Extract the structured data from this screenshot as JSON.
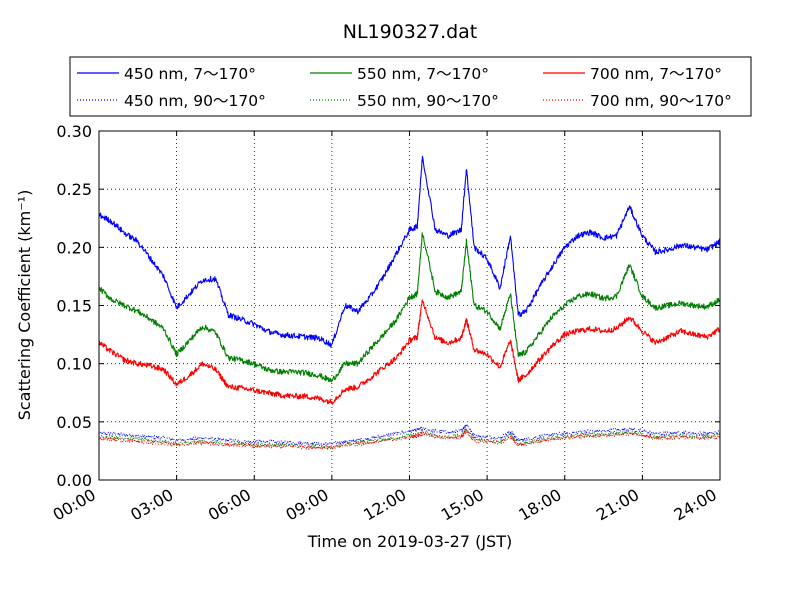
{
  "chart_data": {
    "type": "line",
    "title": "NL190327.dat",
    "xlabel": "Time on 2019-03-27 (JST)",
    "ylabel": "Scattering Coefficient (km⁻¹)",
    "xlim": [
      "00:00",
      "24:00"
    ],
    "ylim": [
      0,
      0.3
    ],
    "x_ticks": [
      "00:00",
      "03:00",
      "06:00",
      "09:00",
      "12:00",
      "15:00",
      "18:00",
      "21:00",
      "24:00"
    ],
    "y_ticks": [
      "0.00",
      "0.05",
      "0.10",
      "0.15",
      "0.20",
      "0.25",
      "0.30"
    ],
    "grid": true,
    "legend_position": "top",
    "x_hours": [
      0,
      0.5,
      1,
      1.5,
      2,
      2.5,
      3,
      3.5,
      4,
      4.5,
      5,
      5.5,
      6,
      6.5,
      7,
      7.5,
      8,
      8.5,
      9,
      9.5,
      10,
      10.5,
      11,
      11.5,
      12,
      12.3,
      12.5,
      13,
      13.5,
      14,
      14.2,
      14.5,
      15,
      15.5,
      15.9,
      16.2,
      16.5,
      17,
      17.5,
      18,
      18.5,
      19,
      19.5,
      20,
      20.5,
      21,
      21.5,
      22,
      22.5,
      23,
      23.5,
      24
    ],
    "series": [
      {
        "name": "450 nm, 7～170°",
        "color": "#0000ff",
        "style": "solid",
        "values": [
          0.228,
          0.222,
          0.212,
          0.205,
          0.19,
          0.175,
          0.148,
          0.16,
          0.172,
          0.173,
          0.142,
          0.138,
          0.134,
          0.128,
          0.125,
          0.124,
          0.123,
          0.122,
          0.116,
          0.15,
          0.145,
          0.158,
          0.175,
          0.195,
          0.215,
          0.218,
          0.278,
          0.215,
          0.21,
          0.215,
          0.268,
          0.2,
          0.19,
          0.165,
          0.21,
          0.142,
          0.145,
          0.165,
          0.183,
          0.2,
          0.21,
          0.213,
          0.208,
          0.21,
          0.235,
          0.21,
          0.196,
          0.198,
          0.202,
          0.2,
          0.198,
          0.205
        ]
      },
      {
        "name": "550 nm, 7～170°",
        "color": "#008000",
        "style": "solid",
        "values": [
          0.165,
          0.155,
          0.15,
          0.145,
          0.138,
          0.13,
          0.108,
          0.12,
          0.132,
          0.127,
          0.105,
          0.103,
          0.1,
          0.095,
          0.093,
          0.093,
          0.092,
          0.09,
          0.085,
          0.1,
          0.1,
          0.113,
          0.125,
          0.138,
          0.157,
          0.16,
          0.213,
          0.162,
          0.157,
          0.162,
          0.205,
          0.15,
          0.145,
          0.13,
          0.16,
          0.107,
          0.11,
          0.125,
          0.14,
          0.15,
          0.158,
          0.16,
          0.156,
          0.158,
          0.185,
          0.158,
          0.148,
          0.15,
          0.152,
          0.15,
          0.149,
          0.155
        ]
      },
      {
        "name": "700 nm, 7～170°",
        "color": "#ff0000",
        "style": "solid",
        "values": [
          0.118,
          0.11,
          0.103,
          0.1,
          0.098,
          0.095,
          0.082,
          0.09,
          0.1,
          0.095,
          0.08,
          0.079,
          0.077,
          0.075,
          0.073,
          0.072,
          0.072,
          0.07,
          0.067,
          0.078,
          0.08,
          0.088,
          0.097,
          0.105,
          0.12,
          0.123,
          0.155,
          0.122,
          0.118,
          0.122,
          0.138,
          0.112,
          0.108,
          0.097,
          0.12,
          0.086,
          0.09,
          0.103,
          0.115,
          0.125,
          0.128,
          0.13,
          0.128,
          0.13,
          0.14,
          0.128,
          0.118,
          0.123,
          0.128,
          0.125,
          0.123,
          0.13
        ]
      },
      {
        "name": "450 nm, 90～170°",
        "color": "#0000ff",
        "style": "dotted",
        "values": [
          0.04,
          0.04,
          0.039,
          0.038,
          0.037,
          0.036,
          0.034,
          0.035,
          0.036,
          0.035,
          0.034,
          0.033,
          0.033,
          0.033,
          0.032,
          0.032,
          0.032,
          0.031,
          0.031,
          0.033,
          0.034,
          0.036,
          0.038,
          0.04,
          0.042,
          0.043,
          0.044,
          0.042,
          0.041,
          0.042,
          0.048,
          0.038,
          0.037,
          0.036,
          0.042,
          0.034,
          0.035,
          0.037,
          0.039,
          0.04,
          0.041,
          0.042,
          0.042,
          0.043,
          0.044,
          0.042,
          0.04,
          0.04,
          0.041,
          0.04,
          0.04,
          0.041
        ]
      },
      {
        "name": "550 nm, 90～170°",
        "color": "#008000",
        "style": "dotted",
        "values": [
          0.037,
          0.037,
          0.036,
          0.035,
          0.034,
          0.033,
          0.031,
          0.032,
          0.033,
          0.032,
          0.031,
          0.031,
          0.03,
          0.03,
          0.03,
          0.03,
          0.029,
          0.029,
          0.028,
          0.031,
          0.032,
          0.033,
          0.035,
          0.036,
          0.038,
          0.039,
          0.041,
          0.038,
          0.037,
          0.038,
          0.044,
          0.035,
          0.034,
          0.033,
          0.039,
          0.031,
          0.032,
          0.034,
          0.036,
          0.037,
          0.038,
          0.039,
          0.039,
          0.04,
          0.041,
          0.039,
          0.037,
          0.037,
          0.038,
          0.037,
          0.037,
          0.038
        ]
      },
      {
        "name": "700 nm, 90～170°",
        "color": "#ff0000",
        "style": "dotted",
        "values": [
          0.035,
          0.035,
          0.034,
          0.033,
          0.032,
          0.031,
          0.03,
          0.031,
          0.032,
          0.031,
          0.03,
          0.03,
          0.029,
          0.029,
          0.029,
          0.029,
          0.028,
          0.028,
          0.028,
          0.03,
          0.031,
          0.032,
          0.034,
          0.035,
          0.037,
          0.038,
          0.04,
          0.037,
          0.036,
          0.037,
          0.042,
          0.034,
          0.033,
          0.032,
          0.037,
          0.03,
          0.031,
          0.033,
          0.035,
          0.036,
          0.037,
          0.038,
          0.038,
          0.039,
          0.04,
          0.038,
          0.036,
          0.036,
          0.037,
          0.036,
          0.036,
          0.037
        ]
      }
    ]
  }
}
